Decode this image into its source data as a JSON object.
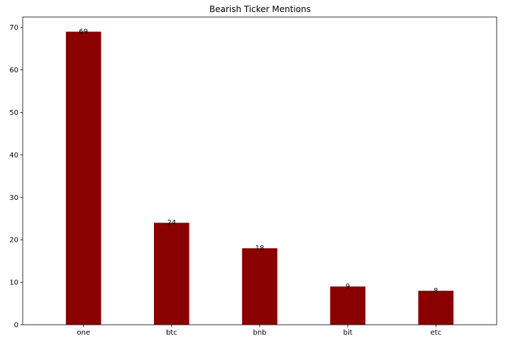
{
  "chart_data": {
    "type": "bar",
    "title": "Bearish Ticker Mentions",
    "xlabel": "",
    "ylabel": "",
    "categories": [
      "one",
      "btc",
      "bnb",
      "bit",
      "etc"
    ],
    "values": [
      69,
      24,
      18,
      9,
      8
    ],
    "ylim": [
      0,
      72.45
    ],
    "yticks": [
      0,
      10,
      20,
      30,
      40,
      50,
      60,
      70
    ],
    "grid": false,
    "legend": "none",
    "bar_color": "#8b0000",
    "data_labels": true
  }
}
